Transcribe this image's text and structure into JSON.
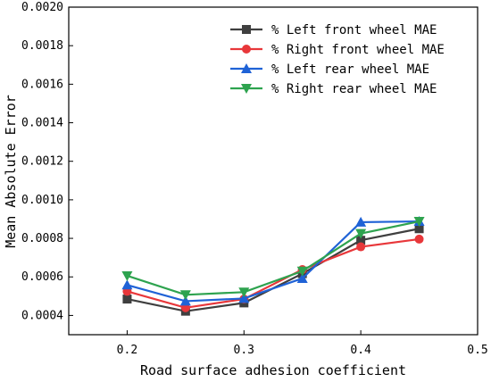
{
  "chart_data": {
    "type": "line",
    "title": "",
    "xlabel": "Road surface adhesion coefficient",
    "ylabel": "Mean Absolute Error",
    "xlim": [
      0.15,
      0.5
    ],
    "ylim": [
      0.0003,
      0.002
    ],
    "xticks": [
      0.2,
      0.3,
      0.4,
      0.5
    ],
    "xtick_labels": [
      "0.2",
      "0.3",
      "0.4",
      "0.5"
    ],
    "yticks": [
      0.0004,
      0.0006,
      0.0008,
      0.001,
      0.0012,
      0.0014,
      0.0016,
      0.0018,
      0.002
    ],
    "ytick_labels": [
      "0.0004",
      "0.0006",
      "0.0008",
      "0.0010",
      "0.0012",
      "0.0014",
      "0.0016",
      "0.0018",
      "0.0020"
    ],
    "grid": false,
    "legend_position": "top-right",
    "x": [
      0.2,
      0.25,
      0.3,
      0.35,
      0.4,
      0.45
    ],
    "series": [
      {
        "name": "% Left front wheel MAE",
        "color": "#3f3f3f",
        "marker": "square",
        "values": [
          0.000485,
          0.000422,
          0.000465,
          0.000617,
          0.00079,
          0.00085
        ]
      },
      {
        "name": "% Right front wheel MAE",
        "color": "#e8373a",
        "marker": "circle",
        "values": [
          0.000525,
          0.00044,
          0.000485,
          0.000638,
          0.000756,
          0.000796
        ]
      },
      {
        "name": "% Left rear wheel MAE",
        "color": "#1f62d6",
        "marker": "triangle-up",
        "values": [
          0.000558,
          0.000474,
          0.000488,
          0.000592,
          0.000884,
          0.000888
        ]
      },
      {
        "name": "% Right rear wheel MAE",
        "color": "#2ea34f",
        "marker": "triangle-down",
        "values": [
          0.000606,
          0.000507,
          0.000521,
          0.00063,
          0.000825,
          0.000888
        ]
      }
    ]
  }
}
